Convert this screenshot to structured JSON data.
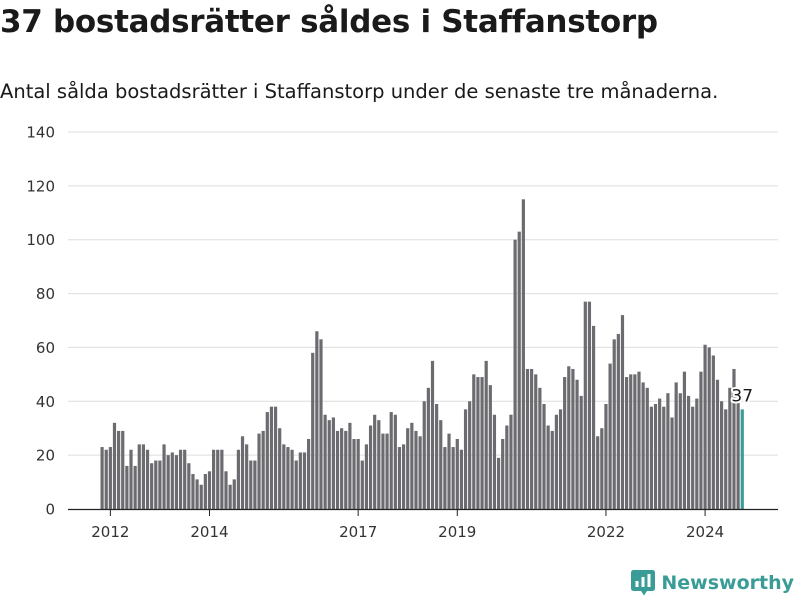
{
  "header": {
    "title": "37 bostadsrätter såldes i Staffanstorp",
    "subtitle": "Antal sålda bostadsrätter i Staffanstorp under de senaste tre månaderna."
  },
  "brand": {
    "name": "Newsworthy",
    "icon": "newsworthy-logo-icon",
    "color": "#3a9c96"
  },
  "colors": {
    "bar": "#6b6b70",
    "highlight": "#3a9c96",
    "grid": "#dddddd"
  },
  "chart_data": {
    "type": "bar",
    "title": "37 bostadsrätter såldes i Staffanstorp",
    "subtitle": "Antal sålda bostadsrätter i Staffanstorp under de senaste tre månaderna.",
    "xlabel": "",
    "ylabel": "",
    "ylim": [
      0,
      140
    ],
    "yticks": [
      0,
      20,
      40,
      60,
      80,
      100,
      120,
      140
    ],
    "xticks": [
      "2012",
      "2014",
      "2017",
      "2019",
      "2022",
      "2024"
    ],
    "grid": true,
    "legend": "none",
    "period": "rolling three-month totals, monthly, from late 2011 to late 2024",
    "values": [
      23,
      22,
      23,
      32,
      29,
      29,
      16,
      22,
      16,
      24,
      24,
      22,
      17,
      18,
      18,
      24,
      20,
      21,
      20,
      22,
      22,
      17,
      13,
      11,
      9,
      13,
      14,
      22,
      22,
      22,
      14,
      9,
      11,
      22,
      27,
      24,
      18,
      18,
      28,
      29,
      36,
      38,
      38,
      30,
      24,
      23,
      22,
      18,
      21,
      21,
      26,
      58,
      66,
      63,
      35,
      33,
      34,
      29,
      30,
      29,
      32,
      26,
      26,
      18,
      24,
      31,
      35,
      33,
      28,
      28,
      36,
      35,
      23,
      24,
      30,
      32,
      29,
      27,
      40,
      45,
      55,
      39,
      33,
      23,
      28,
      23,
      26,
      22,
      37,
      40,
      50,
      49,
      49,
      55,
      46,
      35,
      19,
      26,
      31,
      35,
      100,
      103,
      115,
      52,
      52,
      50,
      45,
      39,
      31,
      29,
      35,
      37,
      49,
      53,
      52,
      48,
      42,
      77,
      77,
      68,
      27,
      30,
      39,
      54,
      63,
      65,
      72,
      49,
      50,
      50,
      51,
      47,
      45,
      38,
      39,
      41,
      38,
      43,
      34,
      47,
      43,
      51,
      42,
      38,
      41,
      51,
      61,
      60,
      57,
      48,
      40,
      37,
      45,
      52,
      42,
      37
    ],
    "highlight": {
      "index": 155,
      "value": 37,
      "label": "37"
    }
  }
}
